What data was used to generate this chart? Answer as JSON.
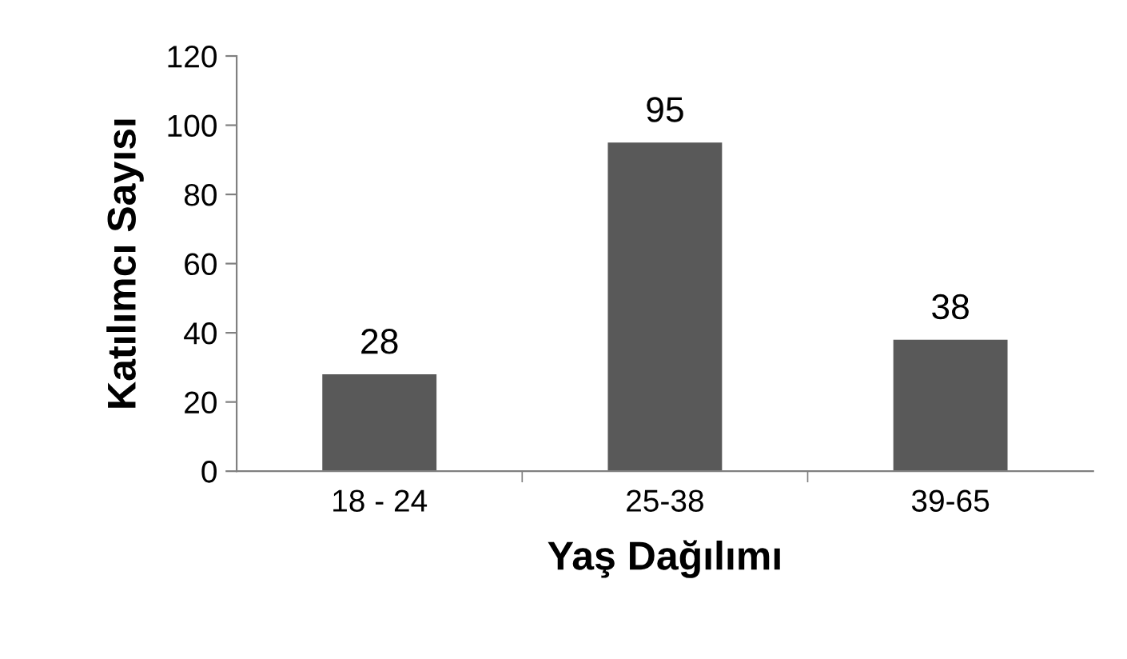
{
  "chart_data": {
    "type": "bar",
    "xlabel": "Yaş Dağılımı",
    "ylabel": "Katılımcı Sayısı",
    "categories": [
      "18 - 24",
      "25-38",
      "39-65"
    ],
    "values": [
      28,
      95,
      38
    ],
    "color": "#595959",
    "ylim": [
      0,
      120
    ],
    "yticks": [
      0,
      20,
      40,
      60,
      80,
      100,
      120
    ],
    "grid": false,
    "data_labels": true
  }
}
